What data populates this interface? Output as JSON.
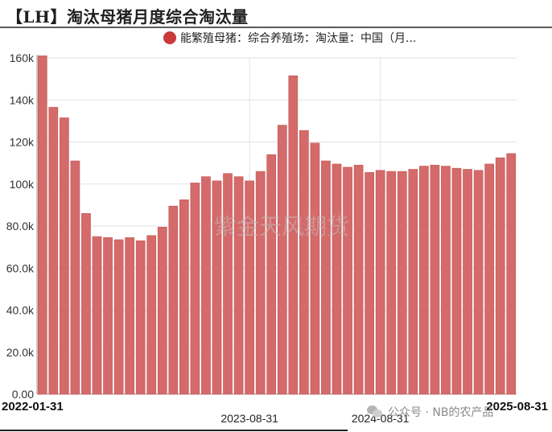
{
  "title": "【LH】淘汰母猪月度综合淘汰量",
  "legend": {
    "label": "能繁殖母猪：综合养殖场：淘汰量：中国（月..."
  },
  "watermark": "紫金天风期货",
  "source_watermark": "公众号 · NB的农产品",
  "colors": {
    "bar": "#d46a6a",
    "bar_stroke": "#c65555",
    "legend": "#c93a3a"
  },
  "chart_data": {
    "type": "bar",
    "title": "【LH】淘汰母猪月度综合淘汰量",
    "series": [
      {
        "name": "能繁殖母猪：综合养殖场：淘汰量：中国（月...",
        "values": [
          161000,
          136500,
          131500,
          111000,
          86000,
          75000,
          74500,
          73500,
          74500,
          73000,
          75500,
          79500,
          89500,
          92500,
          100500,
          103500,
          101500,
          105000,
          103500,
          101500,
          106000,
          114000,
          128000,
          151500,
          125500,
          119500,
          111000,
          109500,
          108000,
          109000,
          105500,
          106500,
          106000,
          106000,
          107000,
          108500,
          109000,
          108500,
          107500,
          107000,
          106500,
          109500,
          112500,
          114500
        ]
      }
    ],
    "x_start": "2022-01",
    "x_end": "2025-08",
    "x_tick_labels": [
      {
        "label": "2022-01-31",
        "index": 0,
        "bold": true
      },
      {
        "label": "2023-08-31",
        "index": 19,
        "bold": false
      },
      {
        "label": "2024-08-31",
        "index": 31,
        "bold": false
      },
      {
        "label": "2025-08-31",
        "index": 43,
        "bold": true
      }
    ],
    "y_ticks": [
      "0.00",
      "20.0k",
      "40.0k",
      "60.0k",
      "80.0k",
      "100k",
      "120k",
      "140k",
      "160k"
    ],
    "ylim": [
      0,
      160000
    ],
    "grid": true,
    "legend_position": "top-right"
  }
}
